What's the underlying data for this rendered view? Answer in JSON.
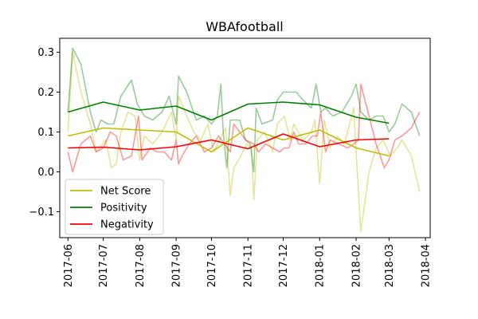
{
  "chart_data": {
    "type": "line",
    "title": "WBAfootball",
    "xlabel": "",
    "ylabel": "",
    "x_range": [
      "2017-05-25",
      "2018-04-05"
    ],
    "ylim": [
      -0.165,
      0.335
    ],
    "x_tick_labels": [
      "2017-06",
      "2017-07",
      "2017-08",
      "2017-09",
      "2017-10",
      "2017-11",
      "2017-12",
      "2018-01",
      "2018-02",
      "2018-03",
      "2018-04"
    ],
    "y_ticks": [
      -0.1,
      0.0,
      0.1,
      0.2,
      0.3
    ],
    "y_tick_labels": [
      "−0.1",
      "0.0",
      "0.1",
      "0.2",
      "0.3"
    ],
    "grid": false,
    "legend_position": "lower-left",
    "series": [
      {
        "name": "Net Score",
        "color": "#bfbf00",
        "raw": [
          [
            "2017-06-01",
            0.1
          ],
          [
            "2017-06-05",
            0.3
          ],
          [
            "2017-06-12",
            0.2
          ],
          [
            "2017-06-20",
            0.12
          ],
          [
            "2017-06-25",
            0.05
          ],
          [
            "2017-06-28",
            0.06
          ],
          [
            "2017-07-03",
            0.08
          ],
          [
            "2017-07-08",
            0.01
          ],
          [
            "2017-07-12",
            0.02
          ],
          [
            "2017-07-16",
            0.1
          ],
          [
            "2017-07-22",
            0.15
          ],
          [
            "2017-07-28",
            0.14
          ],
          [
            "2017-08-01",
            0.03
          ],
          [
            "2017-08-05",
            0.09
          ],
          [
            "2017-08-12",
            0.07
          ],
          [
            "2017-08-20",
            0.1
          ],
          [
            "2017-08-28",
            0.15
          ],
          [
            "2017-09-01",
            0.08
          ],
          [
            "2017-09-03",
            0.19
          ],
          [
            "2017-09-10",
            0.14
          ],
          [
            "2017-09-16",
            0.1
          ],
          [
            "2017-09-22",
            0.08
          ],
          [
            "2017-09-28",
            0.12
          ],
          [
            "2017-10-03",
            0.05
          ],
          [
            "2017-10-08",
            0.08
          ],
          [
            "2017-10-13",
            0.11
          ],
          [
            "2017-10-17",
            -0.06
          ],
          [
            "2017-10-20",
            0.01
          ],
          [
            "2017-10-26",
            0.04
          ],
          [
            "2017-10-31",
            0.07
          ],
          [
            "2017-11-04",
            0.06
          ],
          [
            "2017-11-06",
            -0.07
          ],
          [
            "2017-11-09",
            0.08
          ],
          [
            "2017-11-15",
            0.1
          ],
          [
            "2017-11-22",
            0.05
          ],
          [
            "2017-11-26",
            0.12
          ],
          [
            "2017-12-02",
            0.14
          ],
          [
            "2017-12-07",
            0.08
          ],
          [
            "2017-12-10",
            0.12
          ],
          [
            "2017-12-18",
            0.08
          ],
          [
            "2017-12-25",
            0.1
          ],
          [
            "2017-12-28",
            0.13
          ],
          [
            "2018-01-01",
            -0.03
          ],
          [
            "2018-01-05",
            0.13
          ],
          [
            "2018-01-10",
            0.06
          ],
          [
            "2018-01-16",
            0.09
          ],
          [
            "2018-01-22",
            0.07
          ],
          [
            "2018-01-30",
            0.16
          ],
          [
            "2018-02-01",
            0.05
          ],
          [
            "2018-02-05",
            -0.15
          ],
          [
            "2018-02-12",
            0.0
          ],
          [
            "2018-02-18",
            0.06
          ],
          [
            "2018-02-24",
            0.08
          ],
          [
            "2018-03-02",
            0.04
          ],
          [
            "2018-03-08",
            0.06
          ],
          [
            "2018-03-12",
            0.08
          ],
          [
            "2018-03-20",
            0.04
          ],
          [
            "2018-03-27",
            -0.05
          ]
        ],
        "monthly": [
          [
            "2017-06-01",
            0.09
          ],
          [
            "2017-07-01",
            0.11
          ],
          [
            "2017-08-01",
            0.105
          ],
          [
            "2017-09-01",
            0.1
          ],
          [
            "2017-10-01",
            0.05
          ],
          [
            "2017-11-01",
            0.11
          ],
          [
            "2017-12-01",
            0.08
          ],
          [
            "2018-01-01",
            0.105
          ],
          [
            "2018-02-01",
            0.06
          ],
          [
            "2018-03-01",
            0.04
          ]
        ]
      },
      {
        "name": "Positivity",
        "color": "#008000",
        "raw": [
          [
            "2017-06-01",
            0.15
          ],
          [
            "2017-06-05",
            0.31
          ],
          [
            "2017-06-12",
            0.27
          ],
          [
            "2017-06-20",
            0.15
          ],
          [
            "2017-06-25",
            0.1
          ],
          [
            "2017-06-29",
            0.13
          ],
          [
            "2017-07-05",
            0.12
          ],
          [
            "2017-07-10",
            0.12
          ],
          [
            "2017-07-16",
            0.19
          ],
          [
            "2017-07-25",
            0.23
          ],
          [
            "2017-07-30",
            0.17
          ],
          [
            "2017-08-05",
            0.14
          ],
          [
            "2017-08-12",
            0.13
          ],
          [
            "2017-08-20",
            0.15
          ],
          [
            "2017-08-26",
            0.19
          ],
          [
            "2017-09-01",
            0.12
          ],
          [
            "2017-09-03",
            0.24
          ],
          [
            "2017-09-10",
            0.2
          ],
          [
            "2017-09-18",
            0.13
          ],
          [
            "2017-09-25",
            0.14
          ],
          [
            "2017-10-01",
            0.12
          ],
          [
            "2017-10-06",
            0.14
          ],
          [
            "2017-10-09",
            0.22
          ],
          [
            "2017-10-11",
            0.1
          ],
          [
            "2017-10-14",
            0.01
          ],
          [
            "2017-10-17",
            0.13
          ],
          [
            "2017-10-25",
            0.13
          ],
          [
            "2017-10-30",
            0.08
          ],
          [
            "2017-11-03",
            0.07
          ],
          [
            "2017-11-06",
            0.0
          ],
          [
            "2017-11-08",
            0.16
          ],
          [
            "2017-11-13",
            0.12
          ],
          [
            "2017-11-22",
            0.13
          ],
          [
            "2017-11-26",
            0.18
          ],
          [
            "2017-12-01",
            0.2
          ],
          [
            "2017-12-07",
            0.2
          ],
          [
            "2017-12-12",
            0.2
          ],
          [
            "2017-12-18",
            0.18
          ],
          [
            "2017-12-25",
            0.16
          ],
          [
            "2017-12-29",
            0.22
          ],
          [
            "2018-01-02",
            0.15
          ],
          [
            "2018-01-06",
            0.16
          ],
          [
            "2018-01-12",
            0.14
          ],
          [
            "2018-01-20",
            0.15
          ],
          [
            "2018-01-28",
            0.19
          ],
          [
            "2018-02-01",
            0.22
          ],
          [
            "2018-02-05",
            0.15
          ],
          [
            "2018-02-12",
            0.13
          ],
          [
            "2018-02-18",
            0.14
          ],
          [
            "2018-02-24",
            0.14
          ],
          [
            "2018-03-01",
            0.1
          ],
          [
            "2018-03-06",
            0.12
          ],
          [
            "2018-03-12",
            0.17
          ],
          [
            "2018-03-20",
            0.15
          ],
          [
            "2018-03-27",
            0.09
          ]
        ],
        "monthly": [
          [
            "2017-06-01",
            0.15
          ],
          [
            "2017-07-01",
            0.175
          ],
          [
            "2017-08-01",
            0.155
          ],
          [
            "2017-09-01",
            0.165
          ],
          [
            "2017-10-01",
            0.13
          ],
          [
            "2017-11-01",
            0.17
          ],
          [
            "2017-12-01",
            0.175
          ],
          [
            "2018-01-01",
            0.168
          ],
          [
            "2018-02-01",
            0.137
          ],
          [
            "2018-03-01",
            0.122
          ]
        ]
      },
      {
        "name": "Negativity",
        "color": "#ff0000",
        "raw": [
          [
            "2017-06-01",
            0.05
          ],
          [
            "2017-06-05",
            0.0
          ],
          [
            "2017-06-12",
            0.07
          ],
          [
            "2017-06-20",
            0.09
          ],
          [
            "2017-06-25",
            0.05
          ],
          [
            "2017-07-01",
            0.06
          ],
          [
            "2017-07-07",
            0.1
          ],
          [
            "2017-07-12",
            0.09
          ],
          [
            "2017-07-18",
            0.03
          ],
          [
            "2017-07-25",
            0.04
          ],
          [
            "2017-07-31",
            0.14
          ],
          [
            "2017-08-03",
            0.03
          ],
          [
            "2017-08-10",
            0.06
          ],
          [
            "2017-08-16",
            0.05
          ],
          [
            "2017-08-22",
            0.05
          ],
          [
            "2017-08-28",
            0.03
          ],
          [
            "2017-09-01",
            0.08
          ],
          [
            "2017-09-03",
            0.02
          ],
          [
            "2017-09-06",
            0.04
          ],
          [
            "2017-09-12",
            0.07
          ],
          [
            "2017-09-18",
            0.09
          ],
          [
            "2017-09-25",
            0.05
          ],
          [
            "2017-10-01",
            0.06
          ],
          [
            "2017-10-07",
            0.09
          ],
          [
            "2017-10-12",
            0.07
          ],
          [
            "2017-10-17",
            0.05
          ],
          [
            "2017-10-20",
            0.12
          ],
          [
            "2017-10-25",
            0.1
          ],
          [
            "2017-10-30",
            0.08
          ],
          [
            "2017-11-06",
            0.07
          ],
          [
            "2017-11-10",
            0.05
          ],
          [
            "2017-11-16",
            0.07
          ],
          [
            "2017-11-22",
            0.06
          ],
          [
            "2017-11-28",
            0.05
          ],
          [
            "2017-12-02",
            0.06
          ],
          [
            "2017-12-06",
            0.06
          ],
          [
            "2017-12-10",
            0.1
          ],
          [
            "2017-12-14",
            0.07
          ],
          [
            "2017-12-20",
            0.07
          ],
          [
            "2017-12-26",
            0.09
          ],
          [
            "2017-12-30",
            0.09
          ],
          [
            "2018-01-02",
            0.15
          ],
          [
            "2018-01-06",
            0.05
          ],
          [
            "2018-01-10",
            0.08
          ],
          [
            "2018-01-17",
            0.07
          ],
          [
            "2018-01-25",
            0.06
          ],
          [
            "2018-01-30",
            0.07
          ],
          [
            "2018-02-03",
            0.08
          ],
          [
            "2018-02-05",
            0.22
          ],
          [
            "2018-02-12",
            0.14
          ],
          [
            "2018-02-18",
            0.07
          ],
          [
            "2018-02-25",
            0.01
          ],
          [
            "2018-03-01",
            0.03
          ],
          [
            "2018-03-06",
            0.08
          ],
          [
            "2018-03-12",
            0.09
          ],
          [
            "2018-03-20",
            0.11
          ],
          [
            "2018-03-27",
            0.15
          ]
        ],
        "monthly": [
          [
            "2017-06-01",
            0.06
          ],
          [
            "2017-07-01",
            0.062
          ],
          [
            "2017-08-01",
            0.055
          ],
          [
            "2017-09-01",
            0.063
          ],
          [
            "2017-10-01",
            0.08
          ],
          [
            "2017-11-01",
            0.058
          ],
          [
            "2017-12-01",
            0.095
          ],
          [
            "2018-01-01",
            0.063
          ],
          [
            "2018-02-01",
            0.08
          ],
          [
            "2018-03-01",
            0.083
          ]
        ]
      }
    ]
  }
}
